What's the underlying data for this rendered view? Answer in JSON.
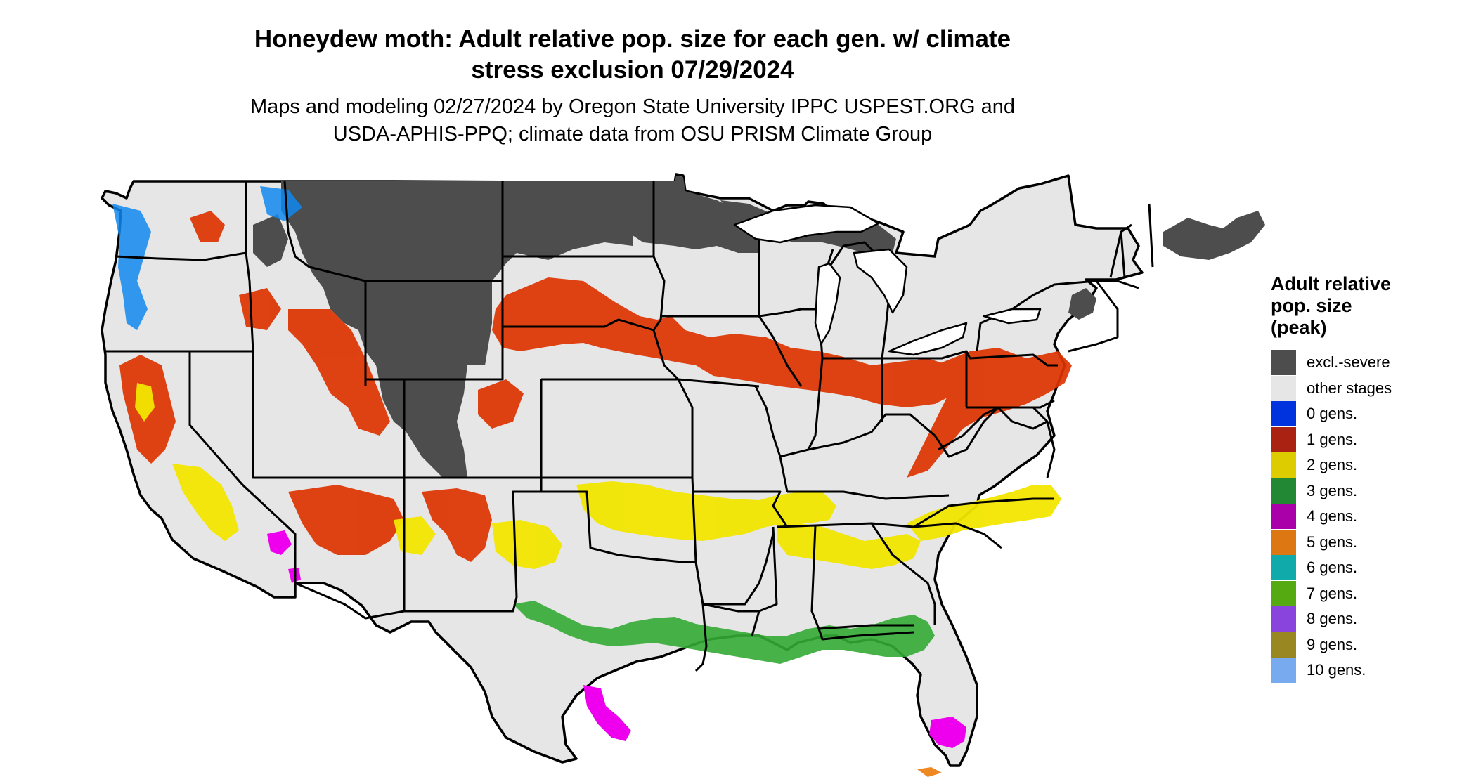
{
  "header": {
    "title": "Honeydew moth: Adult relative pop. size for each gen. w/ climate stress exclusion 07/29/2024",
    "title_line1": "Honeydew moth: Adult relative pop. size for each gen. w/ climate",
    "title_line2": "stress exclusion 07/29/2024",
    "subtitle_line1": "Maps and modeling 02/27/2024 by Oregon State University IPPC USPEST.ORG and",
    "subtitle_line2": "USDA-APHIS-PPQ; climate data from OSU PRISM Climate Group"
  },
  "legend": {
    "title_line1": "Adult relative",
    "title_line2": "pop. size",
    "title_line3": "(peak)",
    "items": [
      {
        "label": "excl.-severe",
        "color": "#4d4d4d"
      },
      {
        "label": "other stages",
        "color": "#e6e6e6"
      },
      {
        "label": "0 gens.",
        "color": "#0033dd"
      },
      {
        "label": "1 gens.",
        "color": "#aa2211"
      },
      {
        "label": "2 gens.",
        "color": "#ddcc00"
      },
      {
        "label": "3 gens.",
        "color": "#228833"
      },
      {
        "label": "4 gens.",
        "color": "#aa00aa"
      },
      {
        "label": "5 gens.",
        "color": "#dd7711"
      },
      {
        "label": "6 gens.",
        "color": "#11aaaa"
      },
      {
        "label": "7 gens.",
        "color": "#55aa11"
      },
      {
        "label": "8 gens.",
        "color": "#8844dd"
      },
      {
        "label": "9 gens.",
        "color": "#998822"
      },
      {
        "label": "10 gens.",
        "color": "#77aaee"
      }
    ]
  },
  "map": {
    "region": "Contiguous United States",
    "colors": {
      "land": "#e6e6e6",
      "excluded": "#4d4d4d",
      "gen1": "#dd3300",
      "gen2": "#f2e600",
      "gen3": "#33aa33",
      "gen4": "#ee00ee",
      "gen0": "#1188ee",
      "gen5": "#ee8822",
      "borders": "#000000"
    }
  }
}
